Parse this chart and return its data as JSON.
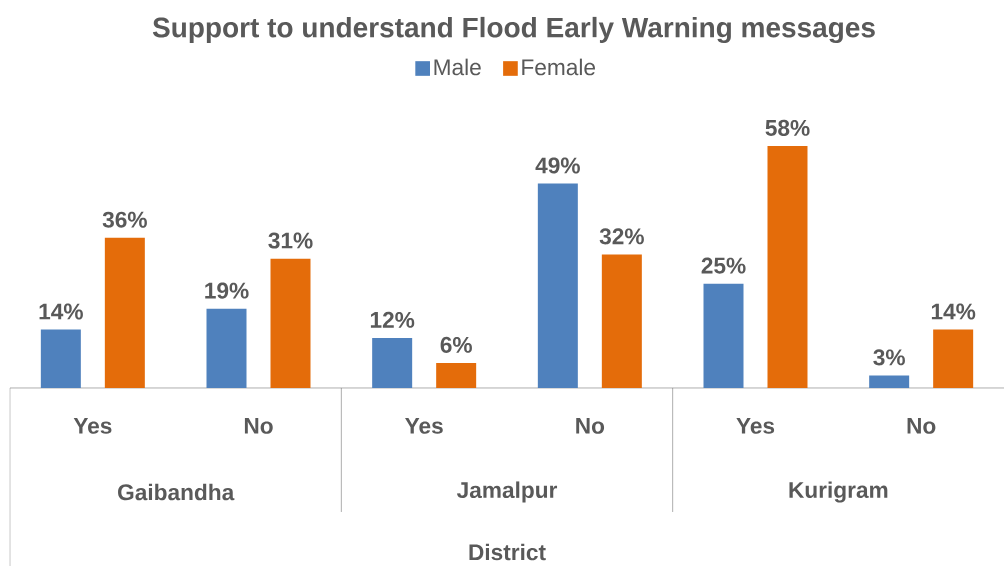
{
  "chart_data": {
    "type": "bar",
    "title": "Support to understand Flood Early Warning messages",
    "xlabel": "District",
    "categories": [
      "Yes",
      "No",
      "Yes",
      "No",
      "Yes",
      "No"
    ],
    "annotations": [
      "Gaibandha",
      "Jamalpur",
      "Kurigram"
    ],
    "series": [
      {
        "name": "Male",
        "color": "#4f81bd",
        "values": [
          14,
          19,
          12,
          49,
          25,
          3
        ],
        "value_labels": [
          "14%",
          "19%",
          "12%",
          "49%",
          "25%",
          "3%"
        ]
      },
      {
        "name": "Female",
        "color": "#e46c0a",
        "values": [
          36,
          31,
          6,
          32,
          58,
          14
        ],
        "value_labels": [
          "36%",
          "31%",
          "6%",
          "32%",
          "58%",
          "14%"
        ]
      }
    ],
    "legend": "top"
  }
}
